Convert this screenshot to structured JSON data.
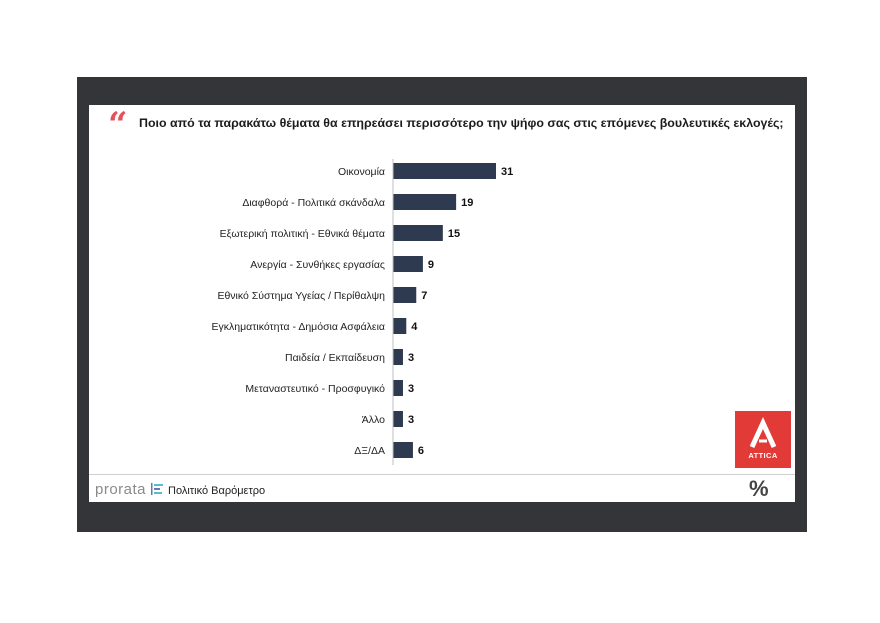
{
  "header": {
    "quote_mark": "“",
    "question": "Ποιο από τα παρακάτω θέματα θα επηρεάσει περισσότερο την ψήφο σας στις επόμενες βουλευτικές εκλογές;"
  },
  "chart_data": {
    "type": "bar",
    "orientation": "horizontal",
    "title": "Ποιο από τα παρακάτω θέματα θα επηρεάσει περισσότερο την ψήφο σας στις επόμενες βουλευτικές εκλογές;",
    "categories": [
      "Οικονομία",
      "Διαφθορά - Πολιτικά σκάνδαλα",
      "Εξωτερική πολιτική - Εθνικά θέματα",
      "Ανεργία - Συνθήκες εργασίας",
      "Εθνικό Σύστημα Υγείας / Περίθαλψη",
      "Εγκληματικότητα - Δημόσια Ασφάλεια",
      "Παιδεία / Εκπαίδευση",
      "Μεταναστευτικό - Προσφυγικό",
      "Άλλο",
      "ΔΞ/ΔΑ"
    ],
    "values": [
      31,
      19,
      15,
      9,
      7,
      4,
      3,
      3,
      3,
      6
    ],
    "bar_color": "#2e3a50",
    "xlim": [
      0,
      31
    ],
    "grid": false,
    "legend": "none"
  },
  "footer": {
    "brand": "prorata",
    "title": "Πολιτικό Βαρόμετρο",
    "percent_symbol": "%",
    "partner": "ATTICA"
  },
  "colors": {
    "frame": "#333538",
    "accent_red": "#e23a36",
    "quote_red": "#e2545a",
    "bar": "#2e3a50"
  }
}
